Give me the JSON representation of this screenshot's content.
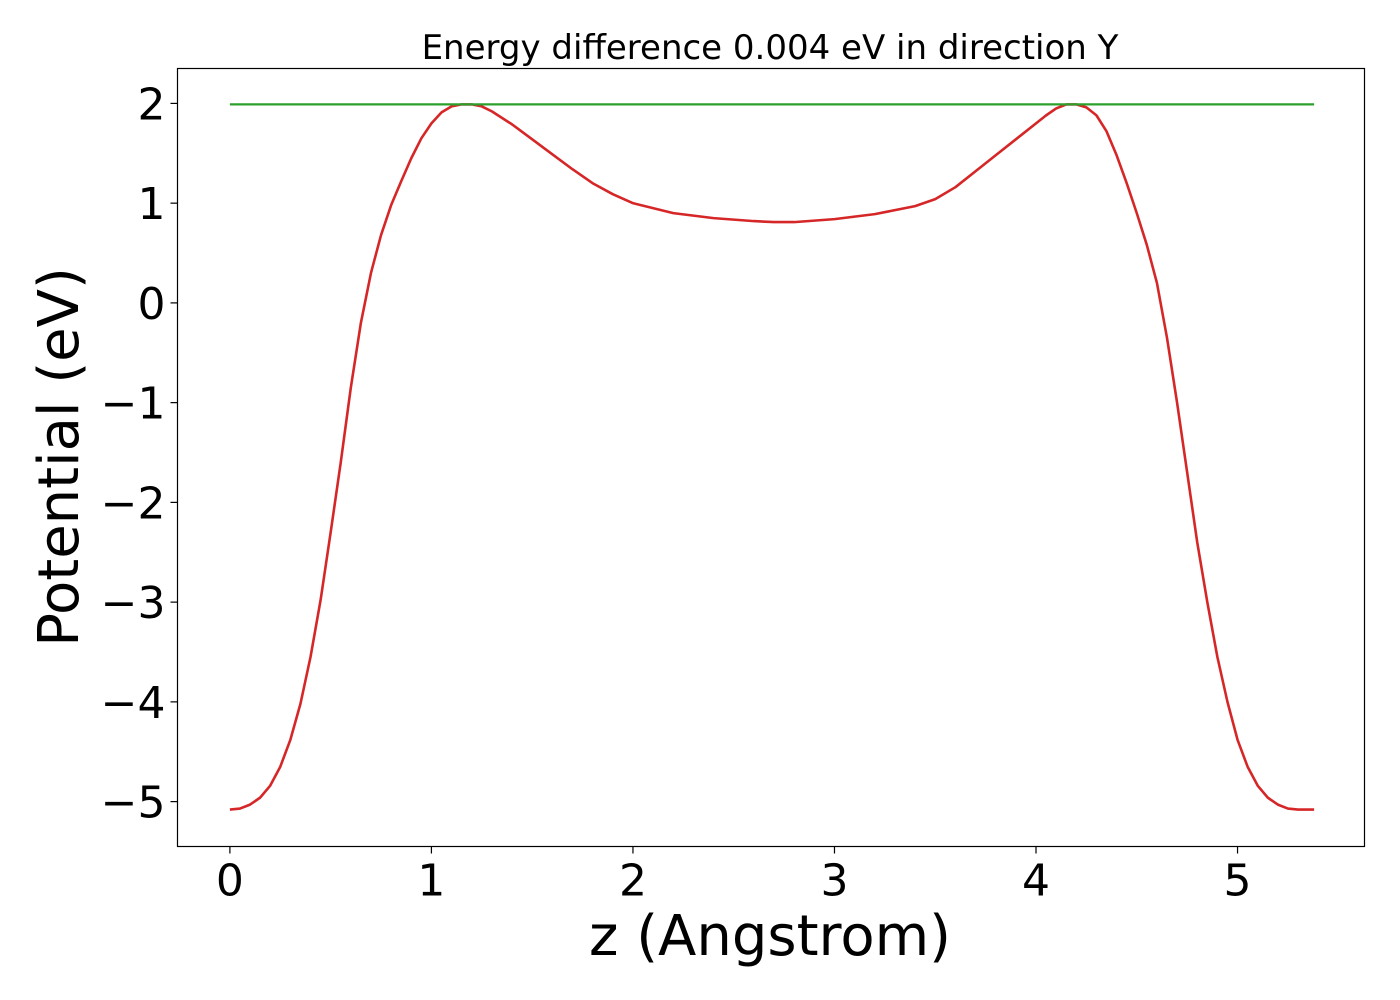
{
  "chart_data": {
    "type": "line",
    "title": "Energy difference 0.004 eV in direction Y",
    "xlabel": "z (Angstrom)",
    "ylabel": "Potential (eV)",
    "xlim": [
      -0.26,
      5.63
    ],
    "ylim": [
      -5.45,
      2.35
    ],
    "x_ticks": [
      0,
      1,
      2,
      3,
      4,
      5
    ],
    "x_tick_labels": [
      "0",
      "1",
      "2",
      "3",
      "4",
      "5"
    ],
    "y_ticks": [
      2,
      1,
      0,
      -1,
      -2,
      -3,
      -4,
      -5
    ],
    "y_tick_labels": [
      "2",
      "1",
      "0",
      "−1",
      "−2",
      "−3",
      "−4",
      "−5"
    ],
    "grid": false,
    "series": [
      {
        "color": "#d62728",
        "x": [
          0,
          0.05,
          0.1,
          0.15,
          0.2,
          0.25,
          0.3,
          0.35,
          0.4,
          0.45,
          0.5,
          0.55,
          0.6,
          0.65,
          0.7,
          0.75,
          0.8,
          0.85,
          0.9,
          0.95,
          1.0,
          1.05,
          1.1,
          1.15,
          1.2,
          1.25,
          1.3,
          1.4,
          1.5,
          1.6,
          1.7,
          1.8,
          1.9,
          2.0,
          2.2,
          2.4,
          2.6,
          2.7,
          2.8,
          3.0,
          3.2,
          3.4,
          3.5,
          3.6,
          3.7,
          3.8,
          3.9,
          4.0,
          4.05,
          4.1,
          4.15,
          4.2,
          4.25,
          4.3,
          4.35,
          4.4,
          4.45,
          4.5,
          4.55,
          4.6,
          4.65,
          4.7,
          4.75,
          4.8,
          4.85,
          4.9,
          4.95,
          5.0,
          5.05,
          5.1,
          5.15,
          5.2,
          5.25,
          5.3,
          5.35,
          5.38
        ],
        "y": [
          -5.08,
          -5.07,
          -5.03,
          -4.96,
          -4.84,
          -4.65,
          -4.38,
          -4.02,
          -3.55,
          -2.98,
          -2.3,
          -1.6,
          -0.85,
          -0.2,
          0.3,
          0.68,
          0.98,
          1.22,
          1.45,
          1.65,
          1.8,
          1.91,
          1.97,
          1.99,
          1.99,
          1.97,
          1.92,
          1.79,
          1.64,
          1.49,
          1.34,
          1.2,
          1.09,
          1.0,
          0.9,
          0.85,
          0.82,
          0.81,
          0.81,
          0.84,
          0.89,
          0.97,
          1.04,
          1.16,
          1.32,
          1.48,
          1.64,
          1.8,
          1.88,
          1.95,
          1.99,
          1.99,
          1.96,
          1.88,
          1.72,
          1.48,
          1.2,
          0.9,
          0.58,
          0.2,
          -0.35,
          -1.0,
          -1.7,
          -2.4,
          -3.0,
          -3.55,
          -4.0,
          -4.38,
          -4.65,
          -4.84,
          -4.96,
          -5.03,
          -5.07,
          -5.08,
          -5.08,
          -5.08
        ]
      },
      {
        "color": "#2ca02c",
        "x": [
          0,
          5.38
        ],
        "y": [
          1.99,
          1.99
        ]
      }
    ]
  }
}
